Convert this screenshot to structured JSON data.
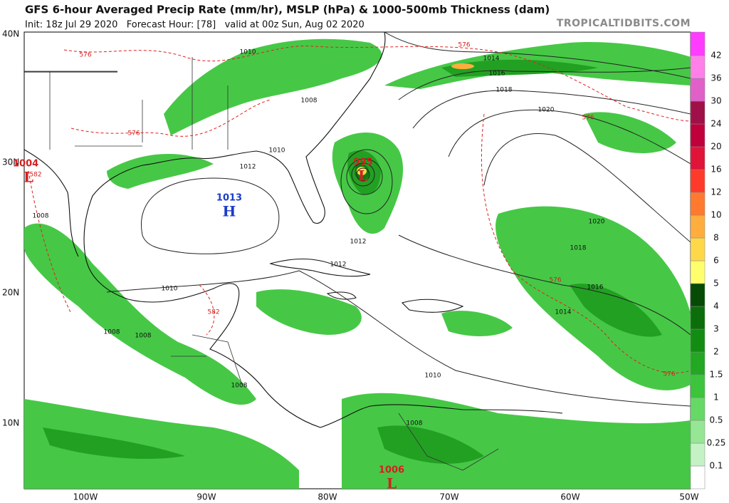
{
  "header": {
    "title": "GFS 6-hour Averaged Precip Rate (mm/hr), MSLP (hPa) & 1000-500mb Thickness (dam)",
    "subtitle": "Init: 18z Jul 29 2020   Forecast Hour: [78]   valid at 00z Sun, Aug 02 2020",
    "source": "TROPICALTIDBITS.COM"
  },
  "map": {
    "lat_labels": [
      "40N",
      "30N",
      "20N",
      "10N"
    ],
    "lon_labels": [
      "100W",
      "90W",
      "80W",
      "70W",
      "60W",
      "50W"
    ],
    "pressure_centers": [
      {
        "value": 1013,
        "symbol": "H"
      },
      {
        "value": 995,
        "symbol": "L"
      },
      {
        "value": 1004,
        "symbol": "L"
      },
      {
        "value": 1006,
        "symbol": "L"
      }
    ],
    "isobar_labels": [
      1010,
      1010,
      1010,
      1010,
      1008,
      1008,
      1008,
      1008,
      1008,
      1008,
      1012,
      1012,
      1012,
      1014,
      1014,
      1016,
      1016,
      1018,
      1018,
      1020,
      1020
    ],
    "thickness_labels": [
      576,
      576,
      576,
      576,
      576,
      576,
      582,
      582
    ]
  },
  "colorbar": {
    "levels": [
      0.1,
      0.25,
      0.5,
      1,
      1.5,
      2,
      3,
      4,
      5,
      6,
      8,
      10,
      12,
      16,
      20,
      24,
      30,
      36,
      42
    ],
    "colors": [
      "#ffffff",
      "#c4f2c4",
      "#96e696",
      "#66d866",
      "#3cc43c",
      "#22a822",
      "#138c13",
      "#0b6e0b",
      "#064a06",
      "#ffff6e",
      "#ffd84a",
      "#ffae3e",
      "#ff7a2e",
      "#ff3a2a",
      "#e01438",
      "#c0003c",
      "#a01048",
      "#e060c8",
      "#ff80e8",
      "#ff3cff"
    ]
  }
}
